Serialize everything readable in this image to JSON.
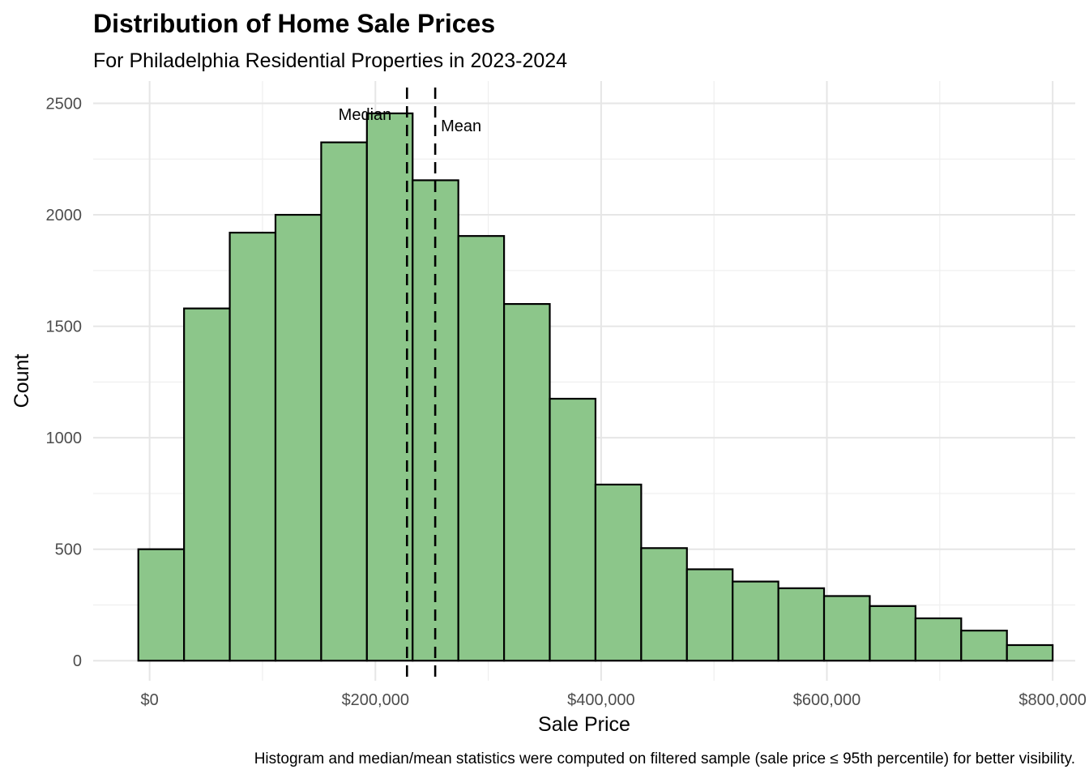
{
  "chart_data": {
    "type": "bar",
    "title": "Distribution of Home Sale Prices",
    "subtitle": "For Philadelphia Residential Properties in 2023-2024",
    "xlabel": "Sale Price",
    "ylabel": "Count",
    "caption": "Histogram and median/mean statistics were computed on filtered sample (sale price ≤ 95th percentile) for better visibility.",
    "xlim": [
      -50000,
      820000
    ],
    "ylim": [
      -90,
      2600
    ],
    "x_ticks": [
      {
        "value": 0,
        "label": "$0"
      },
      {
        "value": 200000,
        "label": "$200,000"
      },
      {
        "value": 400000,
        "label": "$400,000"
      },
      {
        "value": 600000,
        "label": "$600,000"
      },
      {
        "value": 800000,
        "label": "$800,000"
      }
    ],
    "y_ticks": [
      {
        "value": 0,
        "label": "0"
      },
      {
        "value": 500,
        "label": "500"
      },
      {
        "value": 1000,
        "label": "1000"
      },
      {
        "value": 1500,
        "label": "1500"
      },
      {
        "value": 2000,
        "label": "2000"
      },
      {
        "value": 2500,
        "label": "2500"
      }
    ],
    "bin_width": 40500,
    "bins": [
      {
        "x0": -10000,
        "x1": 30500,
        "count": 500
      },
      {
        "x0": 30500,
        "x1": 71000,
        "count": 1580
      },
      {
        "x0": 71000,
        "x1": 111500,
        "count": 1920
      },
      {
        "x0": 111500,
        "x1": 152000,
        "count": 2000
      },
      {
        "x0": 152000,
        "x1": 192500,
        "count": 2325
      },
      {
        "x0": 192500,
        "x1": 233000,
        "count": 2455
      },
      {
        "x0": 233000,
        "x1": 273500,
        "count": 2155
      },
      {
        "x0": 273500,
        "x1": 314000,
        "count": 1905
      },
      {
        "x0": 314000,
        "x1": 354500,
        "count": 1600
      },
      {
        "x0": 354500,
        "x1": 395000,
        "count": 1175
      },
      {
        "x0": 395000,
        "x1": 435500,
        "count": 790
      },
      {
        "x0": 435500,
        "x1": 476000,
        "count": 505
      },
      {
        "x0": 476000,
        "x1": 516500,
        "count": 410
      },
      {
        "x0": 516500,
        "x1": 557000,
        "count": 355
      },
      {
        "x0": 557000,
        "x1": 597500,
        "count": 325
      },
      {
        "x0": 597500,
        "x1": 638000,
        "count": 290
      },
      {
        "x0": 638000,
        "x1": 678500,
        "count": 245
      },
      {
        "x0": 678500,
        "x1": 719000,
        "count": 190
      },
      {
        "x0": 719000,
        "x1": 759500,
        "count": 135
      },
      {
        "x0": 759500,
        "x1": 800000,
        "count": 70
      }
    ],
    "bar_fill": "#8cc68a",
    "bar_outline": "#000000",
    "median": {
      "value": 228000,
      "label": "Median"
    },
    "mean": {
      "value": 253000,
      "label": "Mean"
    },
    "grid": true,
    "legend": "none"
  }
}
